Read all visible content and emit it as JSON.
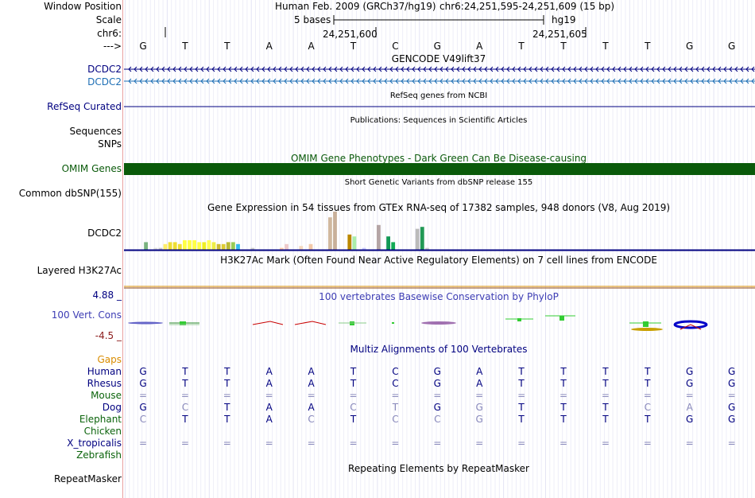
{
  "header": {
    "window_position_label": "Window Position",
    "scale_label": "Scale",
    "chr_label": "chr6:",
    "arrow_label": "--->",
    "assembly_text": "Human Feb. 2009 (GRCh37/hg19)",
    "position_text": "chr6:24,251,595-24,251,609 (15 bp)",
    "scale_text": "5 bases",
    "db_text": "hg19",
    "coord_left": "24,251,600",
    "coord_right": "24,251,605"
  },
  "bases": [
    "G",
    "T",
    "T",
    "A",
    "A",
    "T",
    "C",
    "G",
    "A",
    "T",
    "T",
    "T",
    "T",
    "G",
    "G"
  ],
  "tracks": {
    "gencode_title": "GENCODE V49lift37",
    "gene1_label": "DCDC2",
    "gene2_label": "DCDC2",
    "refseq_label": "RefSeq Curated",
    "refseq_title": "RefSeq genes from NCBI",
    "pubs_title": "Publications: Sequences in Scientific Articles",
    "sequences_label": "Sequences",
    "snps_label": "SNPs",
    "omim_title": "OMIM Gene Phenotypes - Dark Green Can Be Disease-causing",
    "omim_label": "OMIM Genes",
    "dbsnp_title": "Short Genetic Variants from dbSNP release 155",
    "dbsnp_label": "Common dbSNP(155)",
    "gtex_title": "Gene Expression in 54 tissues from GTEx RNA-seq of 17382 samples, 948 donors (V8, Aug 2019)",
    "gtex_label": "DCDC2",
    "h3k27_title": "H3K27Ac Mark (Often Found Near Active Regulatory Elements) on 7 cell lines from ENCODE",
    "h3k27_label": "Layered H3K27Ac",
    "phylop_max": "4.88 _",
    "phylop_min": "-4.5 _",
    "phylop_title": "100 vertebrates Basewise Conservation by PhyloP",
    "cons_label": "100 Vert. Cons",
    "multiz_title": "Multiz Alignments of 100 Vertebrates",
    "gaps_label": "Gaps",
    "repeat_title": "Repeating Elements by RepeatMasker",
    "repeat_label": "RepeatMasker"
  },
  "colors": {
    "navy": "#000080",
    "blue2": "#1e6fb5",
    "omim": "#0a5a0a",
    "orange": "#d98c00",
    "red": "#8b1a1a",
    "phylop": "#3c3cb4",
    "green_label": "#0c640c"
  },
  "gtex_values": [
    0,
    0,
    4,
    0,
    1,
    1,
    3,
    4,
    4,
    3,
    5,
    5,
    5,
    4,
    4,
    5,
    4,
    3,
    3,
    4,
    4,
    3,
    0,
    0,
    1,
    0,
    0,
    0,
    0,
    0,
    1,
    3,
    0,
    0,
    2,
    0,
    3,
    0,
    0,
    0,
    17,
    20,
    0,
    0,
    8,
    7,
    0,
    1,
    0,
    0,
    13,
    0,
    7,
    4,
    0,
    0,
    0,
    0,
    11,
    12,
    1,
    0
  ],
  "gtex_colors": [
    "#ddd",
    "#ddd",
    "#7ab380",
    "#ddd",
    "#ddd",
    "#ccc",
    "#ffee66",
    "#eedd33",
    "#eedd33",
    "#eedd33",
    "#ffff44",
    "#ffff44",
    "#ffff44",
    "#ffff44",
    "#eeee22",
    "#ffff55",
    "#eeee44",
    "#ccbb33",
    "#ddcc33",
    "#bbbb33",
    "#99cc55",
    "#33bbee",
    "#ddd",
    "#ddd",
    "#cccccc",
    "#ddd",
    "#ddd",
    "#ddd",
    "#ddd",
    "#ddd",
    "#ffccaa",
    "#eecaca",
    "#ddd",
    "#ddd",
    "#f5d9c0",
    "#ddd",
    "#f2c9a9",
    "#ddd",
    "#ddd",
    "#ddd",
    "#d0b89f",
    "#c8b09a",
    "#ddd",
    "#ddd",
    "#bb8800",
    "#aaeeaa",
    "#ddd",
    "#ccccff",
    "#ddd",
    "#ddd",
    "#b5a5a5",
    "#ddd",
    "#119955",
    "#11aa55",
    "#ddd",
    "#ddd",
    "#ddd",
    "#ddd",
    "#bbbbbb",
    "#229955",
    "#cccccc",
    "#ddd"
  ],
  "species": [
    {
      "name": "Human",
      "color": "#000080",
      "row": [
        "G",
        "T",
        "T",
        "A",
        "A",
        "T",
        "C",
        "G",
        "A",
        "T",
        "T",
        "T",
        "T",
        "G",
        "G"
      ]
    },
    {
      "name": "Rhesus",
      "color": "#000080",
      "row": [
        "G",
        "T",
        "T",
        "A",
        "A",
        "T",
        "C",
        "G",
        "A",
        "T",
        "T",
        "T",
        "T",
        "G",
        "G"
      ]
    },
    {
      "name": "Mouse",
      "color": "#0c640c",
      "row": [
        "=",
        "=",
        "=",
        "=",
        "=",
        "=",
        "=",
        "=",
        "=",
        "=",
        "=",
        "=",
        "=",
        "=",
        "="
      ]
    },
    {
      "name": "Dog",
      "color": "#000080",
      "row": [
        "G",
        "C",
        "T",
        "A",
        "A",
        "C",
        "T",
        "G",
        "G",
        "T",
        "T",
        "T",
        "C",
        "A",
        "G"
      ]
    },
    {
      "name": "Elephant",
      "color": "#0c640c",
      "row": [
        "C",
        "T",
        "T",
        "A",
        "C",
        "T",
        "C",
        "C",
        "G",
        "T",
        "T",
        "T",
        "T",
        "G",
        "G"
      ]
    },
    {
      "name": "Chicken",
      "color": "#0c640c",
      "row": [
        "",
        "",
        "",
        "",
        "",
        "",
        "",
        "",
        "",
        "",
        "",
        "",
        "",
        "",
        ""
      ]
    },
    {
      "name": "X_tropicalis",
      "color": "#000080",
      "row": [
        "=",
        "=",
        "=",
        "=",
        "=",
        "=",
        "=",
        "=",
        "=",
        "=",
        "=",
        "=",
        "=",
        "=",
        "="
      ]
    },
    {
      "name": "Zebrafish",
      "color": "#0c640c",
      "row": [
        "",
        "",
        "",
        "",
        "",
        "",
        "",
        "",
        "",
        "",
        "",
        "",
        "",
        "",
        ""
      ]
    }
  ],
  "species_light": [
    [
      false,
      false,
      false,
      false,
      false,
      false,
      false,
      false,
      false,
      false,
      false,
      false,
      false,
      false,
      false
    ],
    [
      false,
      false,
      false,
      false,
      false,
      false,
      false,
      false,
      false,
      false,
      false,
      false,
      false,
      false,
      false
    ],
    [
      true,
      true,
      true,
      true,
      true,
      true,
      true,
      true,
      true,
      true,
      true,
      true,
      true,
      true,
      true
    ],
    [
      false,
      true,
      false,
      false,
      false,
      true,
      true,
      false,
      true,
      false,
      false,
      false,
      true,
      true,
      false
    ],
    [
      true,
      false,
      false,
      false,
      true,
      false,
      true,
      true,
      true,
      false,
      false,
      false,
      false,
      false,
      false
    ],
    [
      false,
      false,
      false,
      false,
      false,
      false,
      false,
      false,
      false,
      false,
      false,
      false,
      false,
      false,
      false
    ],
    [
      true,
      true,
      true,
      true,
      true,
      true,
      true,
      true,
      true,
      true,
      true,
      true,
      true,
      true,
      true
    ],
    [
      false,
      false,
      false,
      false,
      false,
      false,
      false,
      false,
      false,
      false,
      false,
      false,
      false,
      false,
      false
    ]
  ]
}
